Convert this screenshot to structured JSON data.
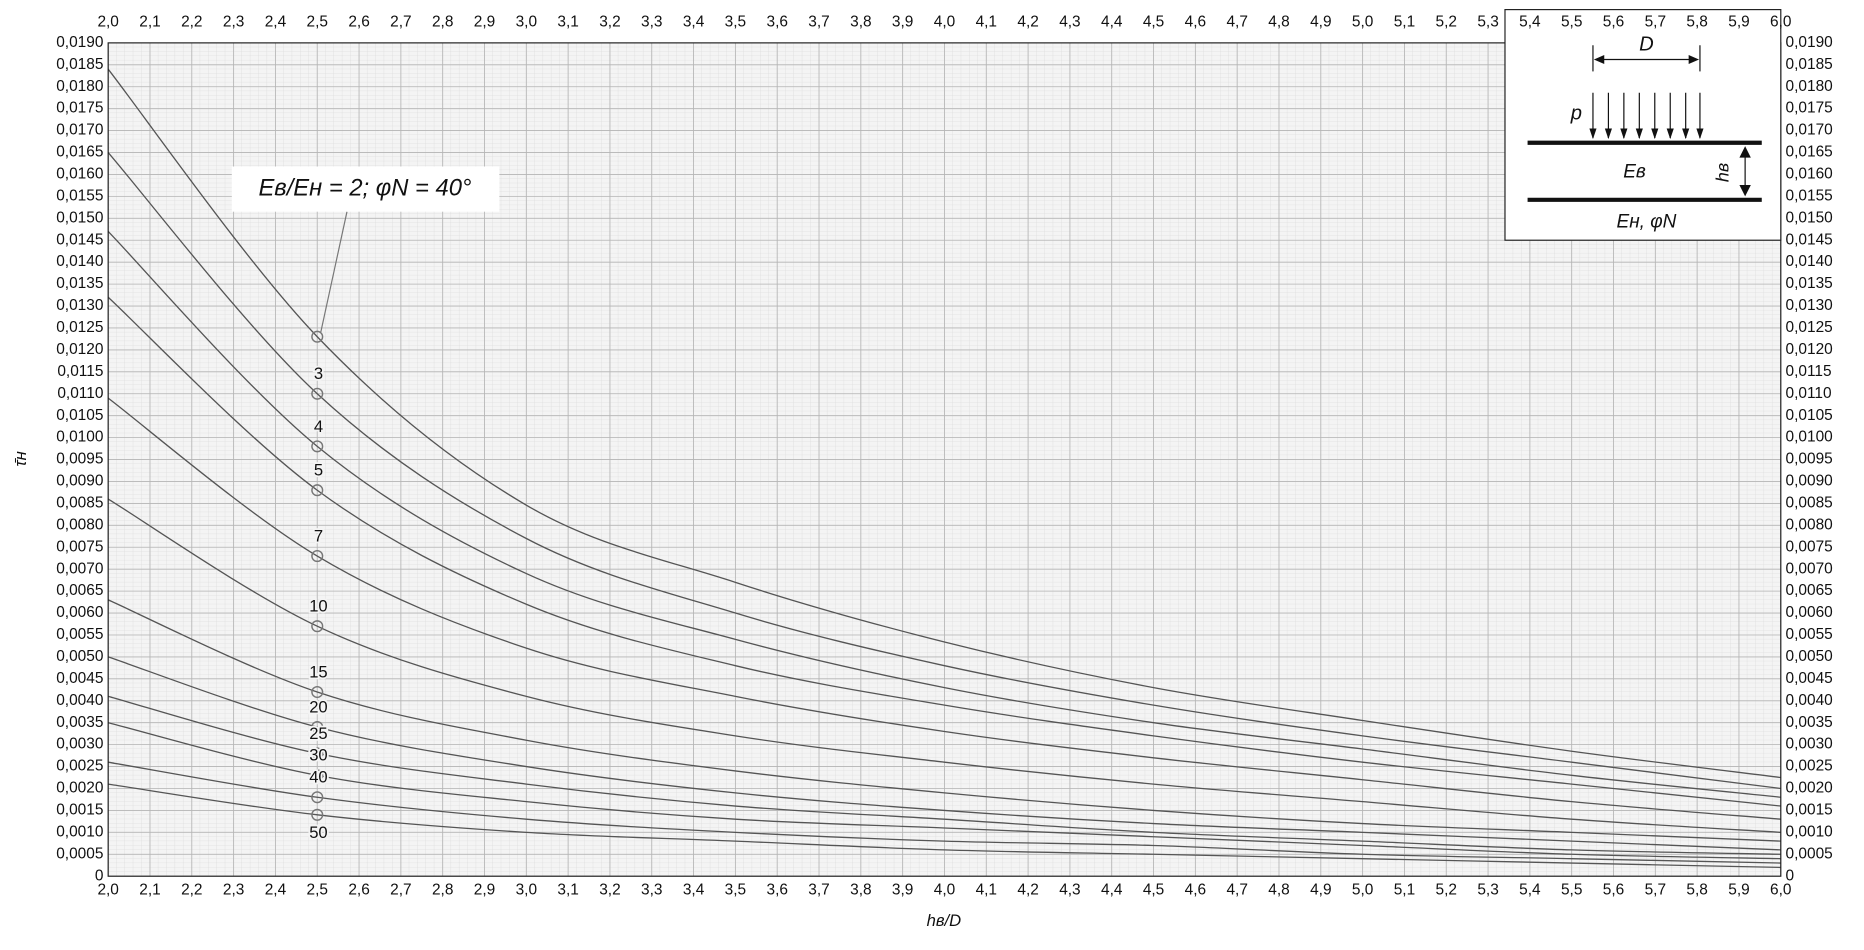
{
  "chart_data": {
    "type": "line",
    "x_label": "hв/D",
    "y_label": "τ̄н",
    "x": [
      2.0,
      2.5,
      3.0,
      3.5,
      4.0,
      4.5,
      5.0,
      5.5,
      6.0
    ],
    "series": [
      {
        "name": "Eв/Eн = 2; φN = 40°",
        "color": "#555555",
        "values": [
          0.0184,
          0.0123,
          0.00846,
          0.0067,
          0.00534,
          0.0043,
          0.00355,
          0.00285,
          0.00225
        ]
      },
      {
        "name": "3",
        "color": "#555555",
        "values": [
          0.0165,
          0.011,
          0.0077,
          0.006,
          0.0048,
          0.0039,
          0.0032,
          0.0026,
          0.002
        ]
      },
      {
        "name": "4",
        "color": "#555555",
        "values": [
          0.0147,
          0.0098,
          0.0069,
          0.0054,
          0.0043,
          0.0035,
          0.0029,
          0.0023,
          0.0018
        ]
      },
      {
        "name": "5",
        "color": "#555555",
        "values": [
          0.0132,
          0.0088,
          0.0062,
          0.0048,
          0.0039,
          0.0032,
          0.0026,
          0.0021,
          0.0016
        ]
      },
      {
        "name": "7",
        "color": "#555555",
        "values": [
          0.0109,
          0.0073,
          0.0052,
          0.0041,
          0.0033,
          0.0027,
          0.0022,
          0.0017,
          0.0013
        ]
      },
      {
        "name": "10",
        "color": "#555555",
        "values": [
          0.0086,
          0.0057,
          0.0041,
          0.0032,
          0.0026,
          0.0021,
          0.0017,
          0.0013,
          0.001
        ]
      },
      {
        "name": "15",
        "color": "#555555",
        "values": [
          0.0063,
          0.0042,
          0.0031,
          0.0024,
          0.0019,
          0.0015,
          0.0012,
          0.001,
          0.0008
        ]
      },
      {
        "name": "20",
        "color": "#555555",
        "values": [
          0.005,
          0.0034,
          0.0025,
          0.0019,
          0.0015,
          0.0012,
          0.001,
          0.0008,
          0.0006
        ]
      },
      {
        "name": "25",
        "color": "#555555",
        "values": [
          0.0041,
          0.0028,
          0.0021,
          0.0016,
          0.0013,
          0.001,
          0.0008,
          0.0006,
          0.0005
        ]
      },
      {
        "name": "30",
        "color": "#555555",
        "values": [
          0.0035,
          0.0023,
          0.0017,
          0.0013,
          0.0011,
          0.0009,
          0.0007,
          0.0005,
          0.0004
        ]
      },
      {
        "name": "40",
        "color": "#555555",
        "values": [
          0.0026,
          0.0018,
          0.0013,
          0.001,
          0.0008,
          0.0007,
          0.0005,
          0.0004,
          0.0003
        ]
      },
      {
        "name": "50",
        "color": "#555555",
        "values": [
          0.0021,
          0.0014,
          0.001,
          0.0008,
          0.0006,
          0.0005,
          0.0004,
          0.0003,
          0.0002
        ]
      }
    ],
    "xlim": [
      2.0,
      6.0
    ],
    "ylim": [
      0,
      0.019
    ],
    "xticks": [
      {
        "value": 2.0,
        "label": "2,0"
      },
      {
        "value": 2.1,
        "label": "2,1"
      },
      {
        "value": 2.2,
        "label": "2,2"
      },
      {
        "value": 2.3,
        "label": "2,3"
      },
      {
        "value": 2.4,
        "label": "2,4"
      },
      {
        "value": 2.5,
        "label": "2,5"
      },
      {
        "value": 2.6,
        "label": "2,6"
      },
      {
        "value": 2.7,
        "label": "2,7"
      },
      {
        "value": 2.8,
        "label": "2,8"
      },
      {
        "value": 2.9,
        "label": "2,9"
      },
      {
        "value": 3.0,
        "label": "3,0"
      },
      {
        "value": 3.1,
        "label": "3,1"
      },
      {
        "value": 3.2,
        "label": "3,2"
      },
      {
        "value": 3.3,
        "label": "3,3"
      },
      {
        "value": 3.4,
        "label": "3,4"
      },
      {
        "value": 3.5,
        "label": "3,5"
      },
      {
        "value": 3.6,
        "label": "3,6"
      },
      {
        "value": 3.7,
        "label": "3,7"
      },
      {
        "value": 3.8,
        "label": "3,8"
      },
      {
        "value": 3.9,
        "label": "3,9"
      },
      {
        "value": 4.0,
        "label": "4,0"
      },
      {
        "value": 4.1,
        "label": "4,1"
      },
      {
        "value": 4.2,
        "label": "4,2"
      },
      {
        "value": 4.3,
        "label": "4,3"
      },
      {
        "value": 4.4,
        "label": "4,4"
      },
      {
        "value": 4.5,
        "label": "4,5"
      },
      {
        "value": 4.6,
        "label": "4,6"
      },
      {
        "value": 4.7,
        "label": "4,7"
      },
      {
        "value": 4.8,
        "label": "4,8"
      },
      {
        "value": 4.9,
        "label": "4,9"
      },
      {
        "value": 5.0,
        "label": "5,0"
      },
      {
        "value": 5.1,
        "label": "5,1"
      },
      {
        "value": 5.2,
        "label": "5,2"
      },
      {
        "value": 5.3,
        "label": "5,3"
      },
      {
        "value": 5.4,
        "label": "5,4"
      },
      {
        "value": 5.5,
        "label": "5,5"
      },
      {
        "value": 5.6,
        "label": "5,6"
      },
      {
        "value": 5.7,
        "label": "5,7"
      },
      {
        "value": 5.8,
        "label": "5,8"
      },
      {
        "value": 5.9,
        "label": "5,9"
      },
      {
        "value": 6.0,
        "label": "6,0"
      }
    ],
    "yticks": [
      0,
      {
        "value": 0.0005,
        "label": "0,0005"
      },
      {
        "value": 0.001,
        "label": "0,0010"
      },
      {
        "value": 0.0015,
        "label": "0,0015"
      },
      {
        "value": 0.002,
        "label": "0,0020"
      },
      {
        "value": 0.0025,
        "label": "0,0025"
      },
      {
        "value": 0.003,
        "label": "0,0030"
      },
      {
        "value": 0.0035,
        "label": "0,0035"
      },
      {
        "value": 0.004,
        "label": "0,0040"
      },
      {
        "value": 0.0045,
        "label": "0,0045"
      },
      {
        "value": 0.005,
        "label": "0,0050"
      },
      {
        "value": 0.0055,
        "label": "0,0055"
      },
      {
        "value": 0.006,
        "label": "0,0060"
      },
      {
        "value": 0.0065,
        "label": "0,0065"
      },
      {
        "value": 0.007,
        "label": "0,0070"
      },
      {
        "value": 0.0075,
        "label": "0,0075"
      },
      {
        "value": 0.008,
        "label": "0,0080"
      },
      {
        "value": 0.0085,
        "label": "0,0085"
      },
      {
        "value": 0.009,
        "label": "0,0090"
      },
      {
        "value": 0.0095,
        "label": "0,0095"
      },
      {
        "value": 0.01,
        "label": "0,0100"
      },
      {
        "value": 0.0105,
        "label": "0,0105"
      },
      {
        "value": 0.011,
        "label": "0,0110"
      },
      {
        "value": 0.0115,
        "label": "0,0115"
      },
      {
        "value": 0.012,
        "label": "0,0120"
      },
      {
        "value": 0.0125,
        "label": "0,0125"
      },
      {
        "value": 0.013,
        "label": "0,0130"
      },
      {
        "value": 0.0135,
        "label": "0,0135"
      },
      {
        "value": 0.014,
        "label": "0,0140"
      },
      {
        "value": 0.0145,
        "label": "0,0145"
      },
      {
        "value": 0.015,
        "label": "0,0150"
      },
      {
        "value": 0.0155,
        "label": "0,0155"
      },
      {
        "value": 0.016,
        "label": "0,0160"
      },
      {
        "value": 0.0165,
        "label": "0,0165"
      },
      {
        "value": 0.017,
        "label": "0,0170"
      },
      {
        "value": 0.0175,
        "label": "0,0175"
      },
      {
        "value": 0.018,
        "label": "0,0180"
      },
      {
        "value": 0.0185,
        "label": "0,0185"
      },
      {
        "value": 0.019,
        "label": "0,0190"
      }
    ],
    "grid": true,
    "inset": {
      "width_label": "D",
      "load_label": "p",
      "upper_layer": "Eв",
      "thickness_label": "hв",
      "lower_layer": "Eн, φN"
    }
  }
}
